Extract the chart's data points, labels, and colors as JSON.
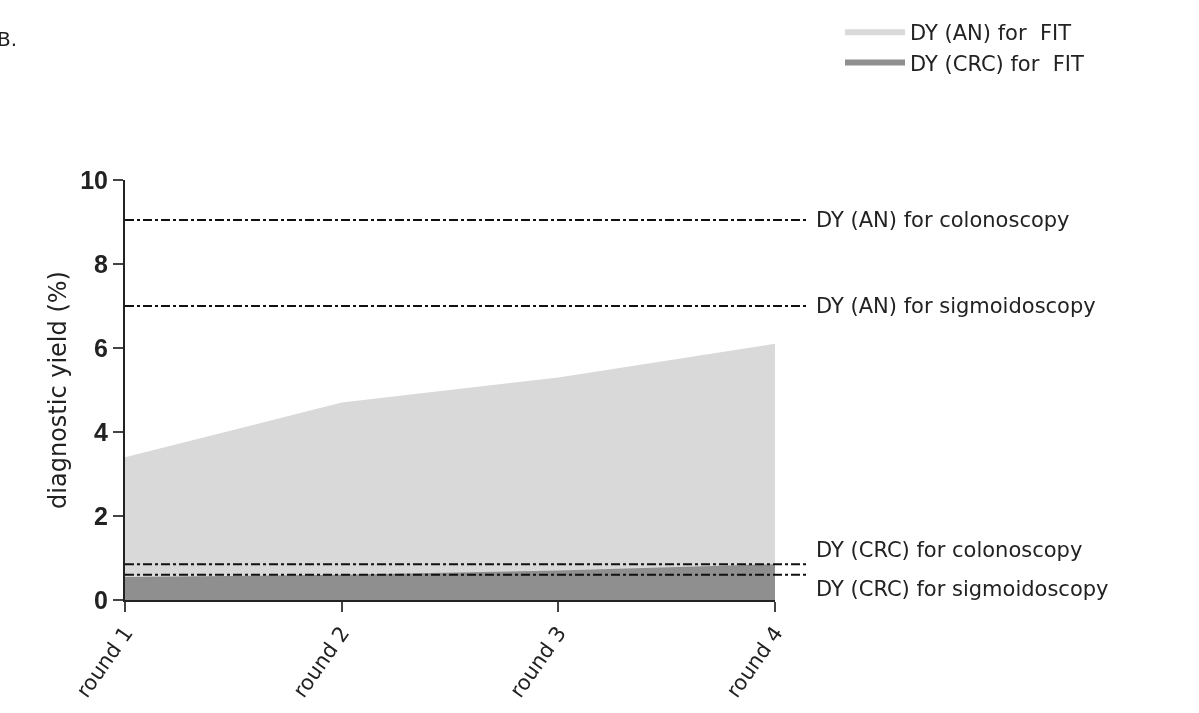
{
  "chart_data": {
    "type": "area",
    "ylabel": "diagnostic yield (%)",
    "categories": [
      "round 1",
      "round 2",
      "round 3",
      "round 4"
    ],
    "series": [
      {
        "name": "DY (AN) for  FIT",
        "color": "#d9d9d9",
        "values": [
          3.4,
          4.7,
          5.3,
          6.1
        ]
      },
      {
        "name": "DY (CRC) for  FIT",
        "color": "#8f8f8f",
        "values": [
          0.55,
          0.6,
          0.7,
          0.85
        ]
      }
    ],
    "ylim": [
      0,
      10
    ],
    "yticks": [
      0,
      2,
      4,
      6,
      8,
      10
    ],
    "grid": false,
    "legend": "top right",
    "ref_lines": [
      {
        "axis": "y",
        "value": 9.05,
        "label": "DY (AN) for colonoscopy"
      },
      {
        "axis": "y",
        "value": 7.0,
        "label": "DY (AN) for sigmoidoscopy"
      },
      {
        "axis": "y",
        "value": 0.85,
        "label": "DY (CRC) for colonoscopy"
      },
      {
        "axis": "y",
        "value": 0.6,
        "label": "DY (CRC) for sigmoidoscopy"
      }
    ],
    "annotations": [
      "B."
    ]
  }
}
